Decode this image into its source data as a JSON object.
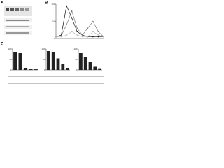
{
  "panels": {
    "a": "A",
    "b": "B",
    "c": "C"
  },
  "chart_data": [
    {
      "type": "line",
      "x": [
        1,
        2,
        3,
        4,
        5,
        6,
        7,
        8,
        9,
        10
      ],
      "xlim": [
        1,
        10
      ],
      "ylim": [
        0,
        100
      ],
      "yticks": [
        0,
        50,
        100
      ],
      "series": [
        {
          "color": "#111111",
          "values": [
            5,
            10,
            95,
            60,
            20,
            10,
            5,
            5,
            5,
            5
          ]
        },
        {
          "color": "#777777",
          "values": [
            5,
            8,
            40,
            80,
            30,
            10,
            30,
            50,
            20,
            5
          ]
        },
        {
          "color": "#bbbbbb",
          "values": [
            5,
            5,
            10,
            20,
            10,
            5,
            5,
            20,
            10,
            5
          ]
        }
      ]
    },
    {
      "type": "bar",
      "values": [
        85,
        80,
        10,
        5,
        3
      ],
      "color": "#222222",
      "ylim": [
        0,
        100
      ],
      "yticks": [
        0,
        50,
        100
      ]
    },
    {
      "type": "bar",
      "values": [
        90,
        85,
        55,
        30,
        10
      ],
      "color": "#222222",
      "ylim": [
        0,
        100
      ],
      "yticks": [
        0,
        50,
        100
      ]
    },
    {
      "type": "bar",
      "values": [
        80,
        60,
        40,
        15,
        8
      ],
      "color": "#222222",
      "ylim": [
        0,
        100
      ],
      "yticks": [
        0,
        50,
        100
      ]
    }
  ]
}
